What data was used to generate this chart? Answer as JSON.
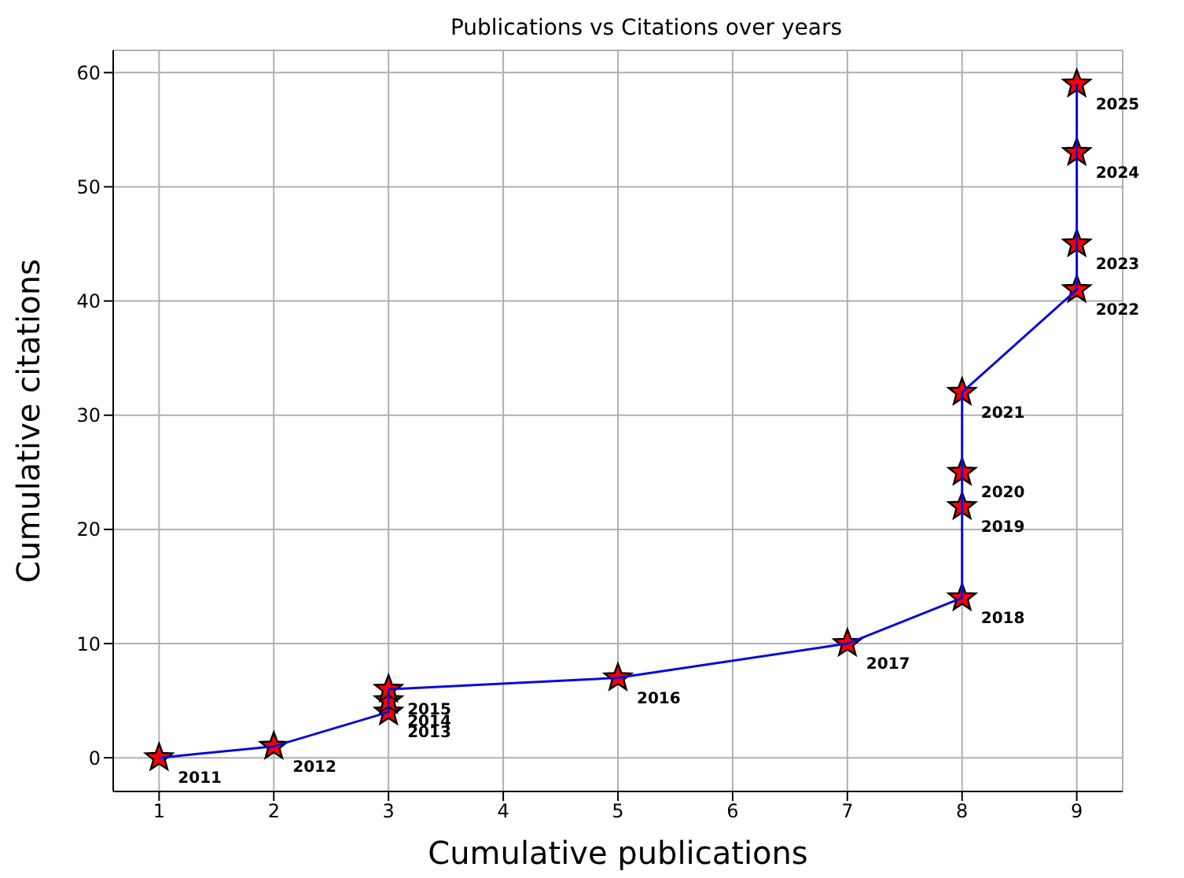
{
  "chart_data": {
    "type": "line",
    "title": "Publications vs Citations over years",
    "xlabel": "Cumulative publications",
    "ylabel": "Cumulative citations",
    "x": [
      1,
      2,
      3,
      3,
      3,
      5,
      7,
      8,
      8,
      8,
      8,
      9,
      9,
      9,
      9
    ],
    "series": [
      {
        "color": "#0a0ad8",
        "values": [
          0,
          1,
          4,
          5,
          6,
          7,
          10,
          14,
          22,
          25,
          32,
          41,
          45,
          53,
          59
        ]
      }
    ],
    "annotations": [
      {
        "text": "2011",
        "x": 1,
        "y": 0
      },
      {
        "text": "2012",
        "x": 2,
        "y": 1
      },
      {
        "text": "2013",
        "x": 3,
        "y": 4
      },
      {
        "text": "2014",
        "x": 3,
        "y": 5
      },
      {
        "text": "2015",
        "x": 3,
        "y": 6
      },
      {
        "text": "2016",
        "x": 5,
        "y": 7
      },
      {
        "text": "2017",
        "x": 7,
        "y": 10
      },
      {
        "text": "2018",
        "x": 8,
        "y": 14
      },
      {
        "text": "2019",
        "x": 8,
        "y": 22
      },
      {
        "text": "2020",
        "x": 8,
        "y": 25
      },
      {
        "text": "2021",
        "x": 8,
        "y": 32
      },
      {
        "text": "2022",
        "x": 9,
        "y": 41
      },
      {
        "text": "2023",
        "x": 9,
        "y": 45
      },
      {
        "text": "2024",
        "x": 9,
        "y": 53
      },
      {
        "text": "2025",
        "x": 9,
        "y": 59
      }
    ],
    "marker": "star",
    "line_style": "solid",
    "grid": true,
    "xlim": [
      0.6,
      9.4
    ],
    "xticks": [
      1,
      2,
      3,
      4,
      5,
      6,
      7,
      8,
      9
    ],
    "ylim": [
      -2.95,
      61.95
    ],
    "yticks": [
      0,
      10,
      20,
      30,
      40,
      50,
      60
    ]
  }
}
